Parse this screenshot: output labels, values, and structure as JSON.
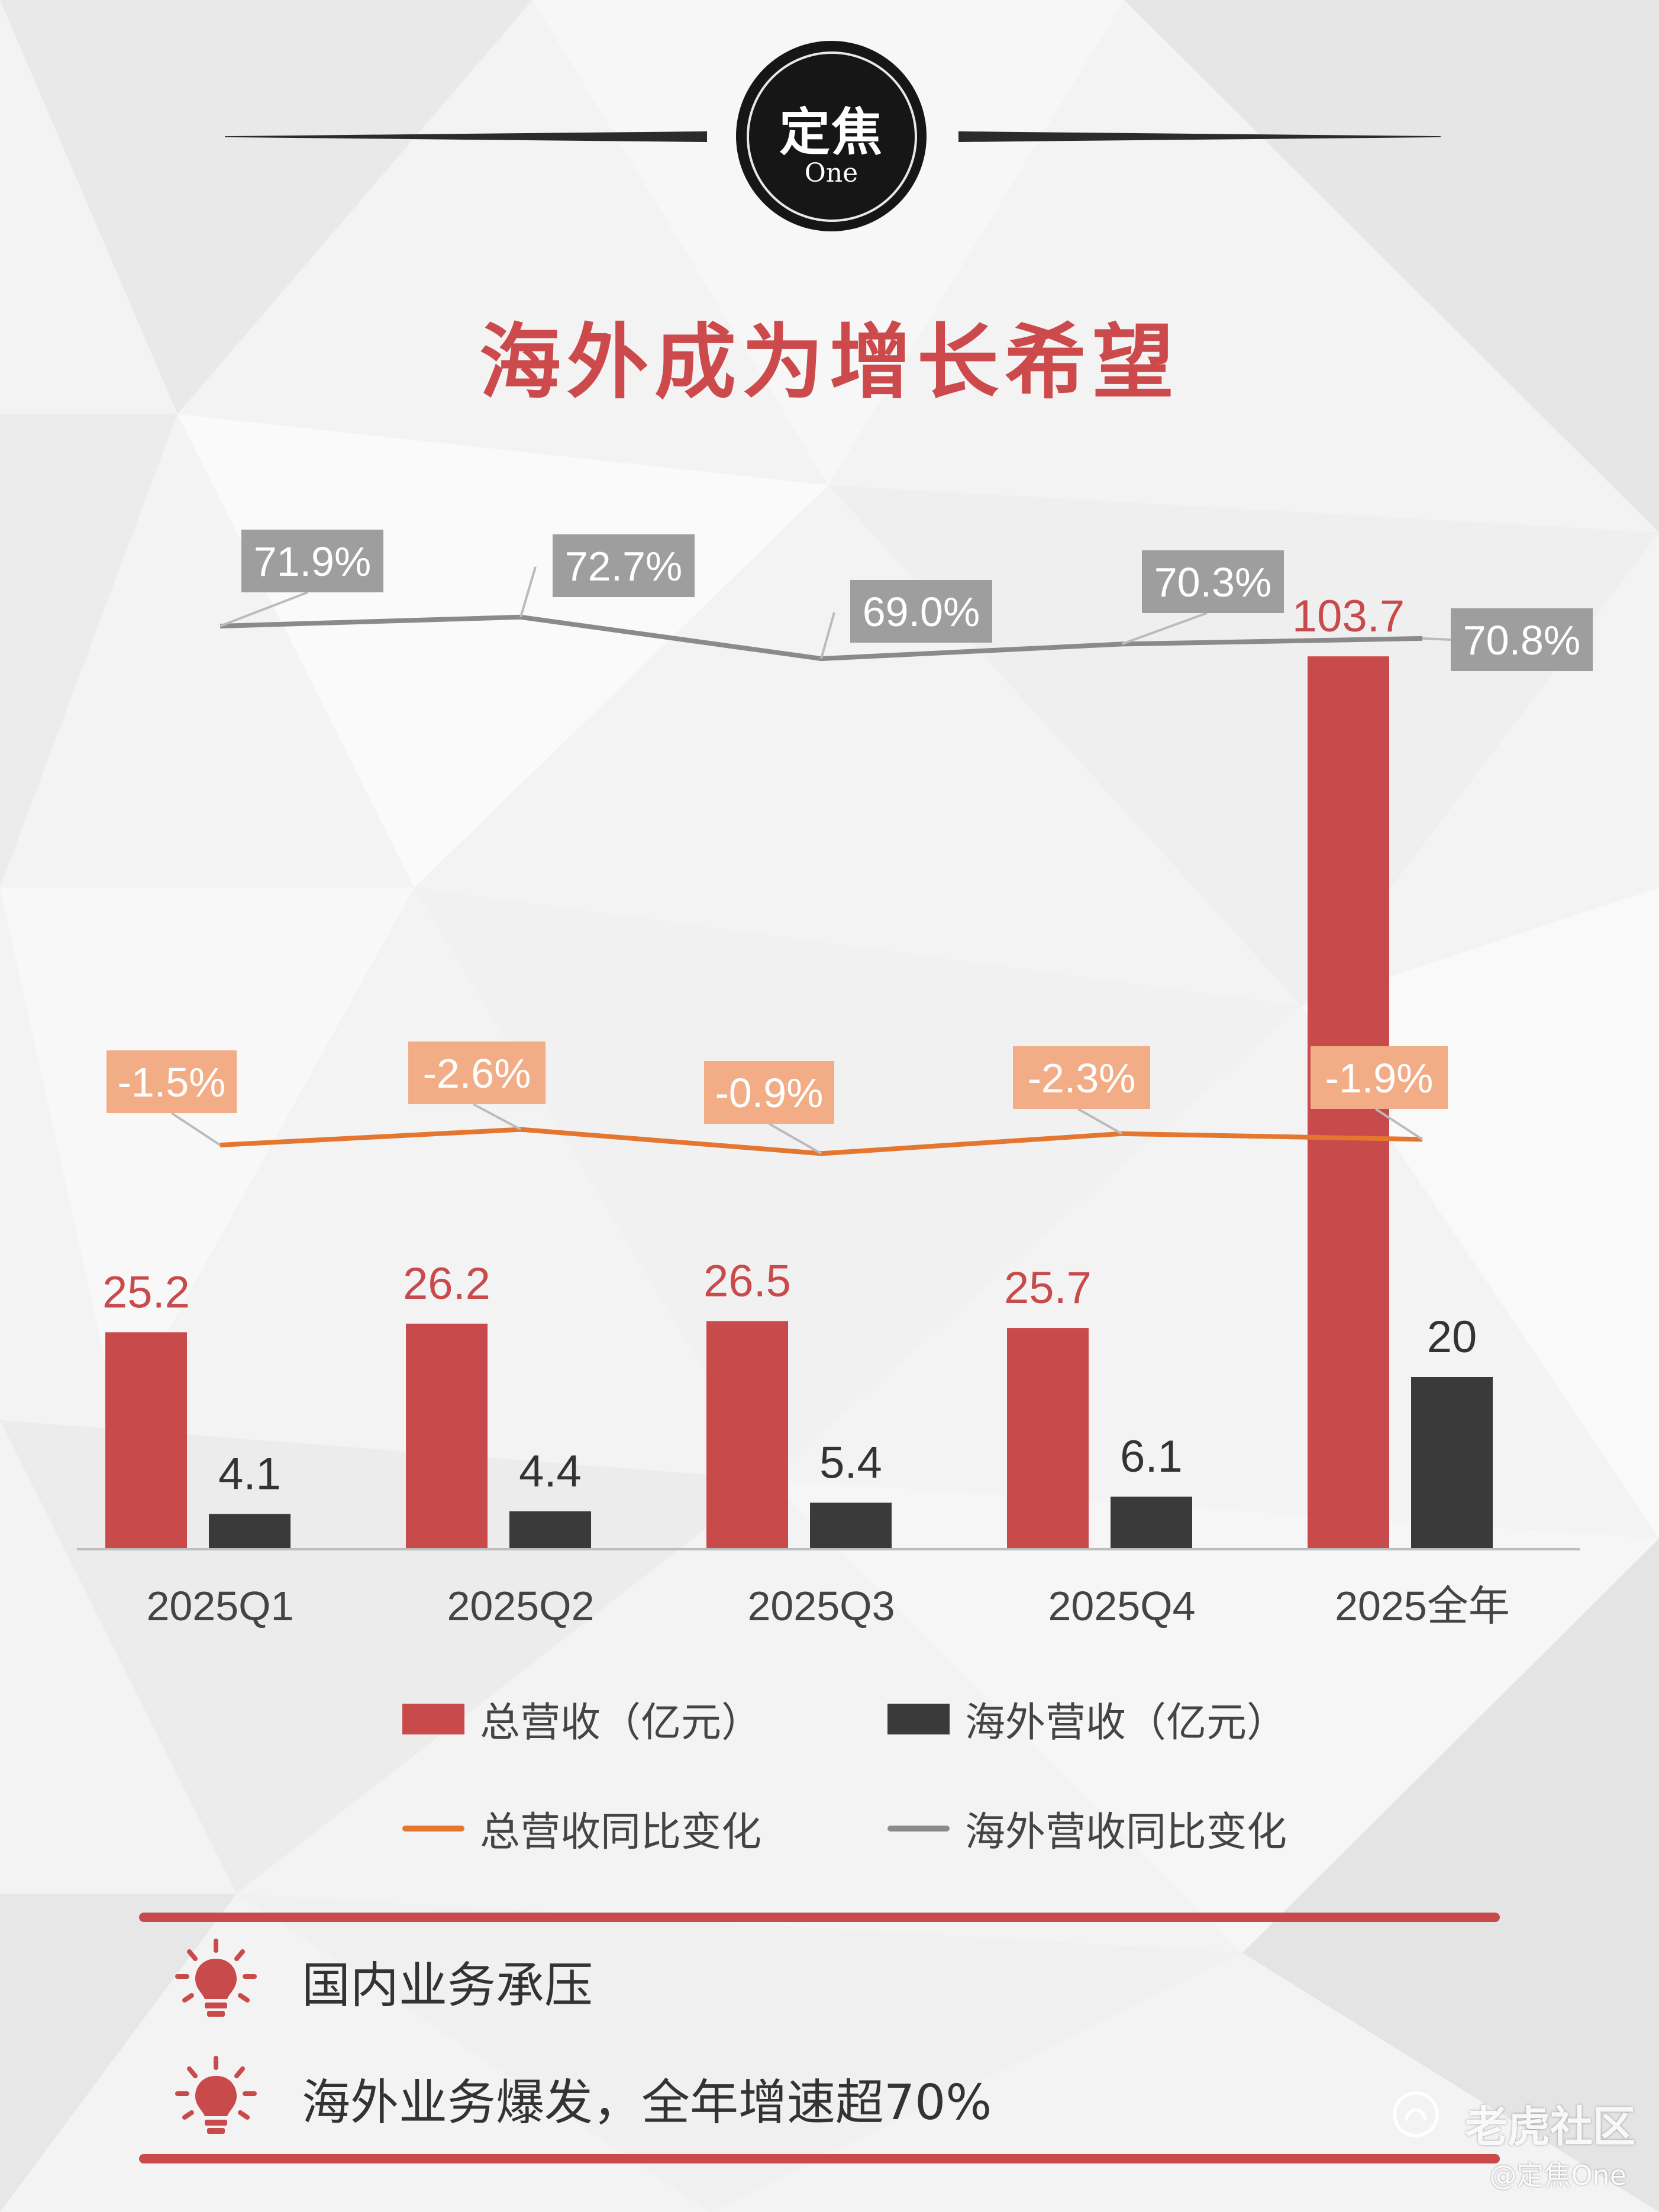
{
  "brand": {
    "main": "定焦",
    "sub": "One"
  },
  "title": "海外成为增长希望",
  "colors": {
    "total": "#c94a4b",
    "overseas": "#3a3a3a",
    "total_yoy": "#e4762f",
    "overseas_yoy": "#8a8a8a",
    "total_yoy_label_bg": "#f2ad86",
    "overseas_yoy_label_bg": "#9e9e9e",
    "title": "#cc4a4b"
  },
  "chart_data": {
    "type": "bar",
    "categories": [
      "2025Q1",
      "2025Q2",
      "2025Q3",
      "2025Q4",
      "2025全年"
    ],
    "series": [
      {
        "name": "总营收（亿元）",
        "kind": "bar",
        "values": [
          25.2,
          26.2,
          26.5,
          25.7,
          103.7
        ],
        "labels": [
          "25.2",
          "26.2",
          "26.5",
          "25.7",
          "103.7"
        ]
      },
      {
        "name": "海外营收（亿元）",
        "kind": "bar",
        "values": [
          4.1,
          4.4,
          5.4,
          6.1,
          20
        ],
        "labels": [
          "4.1",
          "4.4",
          "5.4",
          "6.1",
          "20"
        ]
      },
      {
        "name": "总营收同比变化",
        "kind": "line",
        "values": [
          -1.5,
          -2.6,
          -0.9,
          -2.3,
          -1.9
        ],
        "labels": [
          "-1.5%",
          "-2.6%",
          "-0.9%",
          "-2.3%",
          "-1.9%"
        ]
      },
      {
        "name": "海外营收同比变化",
        "kind": "line",
        "values": [
          71.9,
          72.7,
          69.0,
          70.3,
          70.8
        ],
        "labels": [
          "71.9%",
          "72.7%",
          "69.0%",
          "70.3%",
          "70.8%"
        ]
      }
    ],
    "legend_position": "bottom",
    "grid": false
  },
  "tips": [
    {
      "icon": "lightbulb-icon",
      "text": "国内业务承压"
    },
    {
      "icon": "lightbulb-icon",
      "text": "海外业务爆发，全年增速超70%"
    }
  ],
  "watermark": {
    "main": "老虎社区",
    "sub": "@定焦One"
  }
}
